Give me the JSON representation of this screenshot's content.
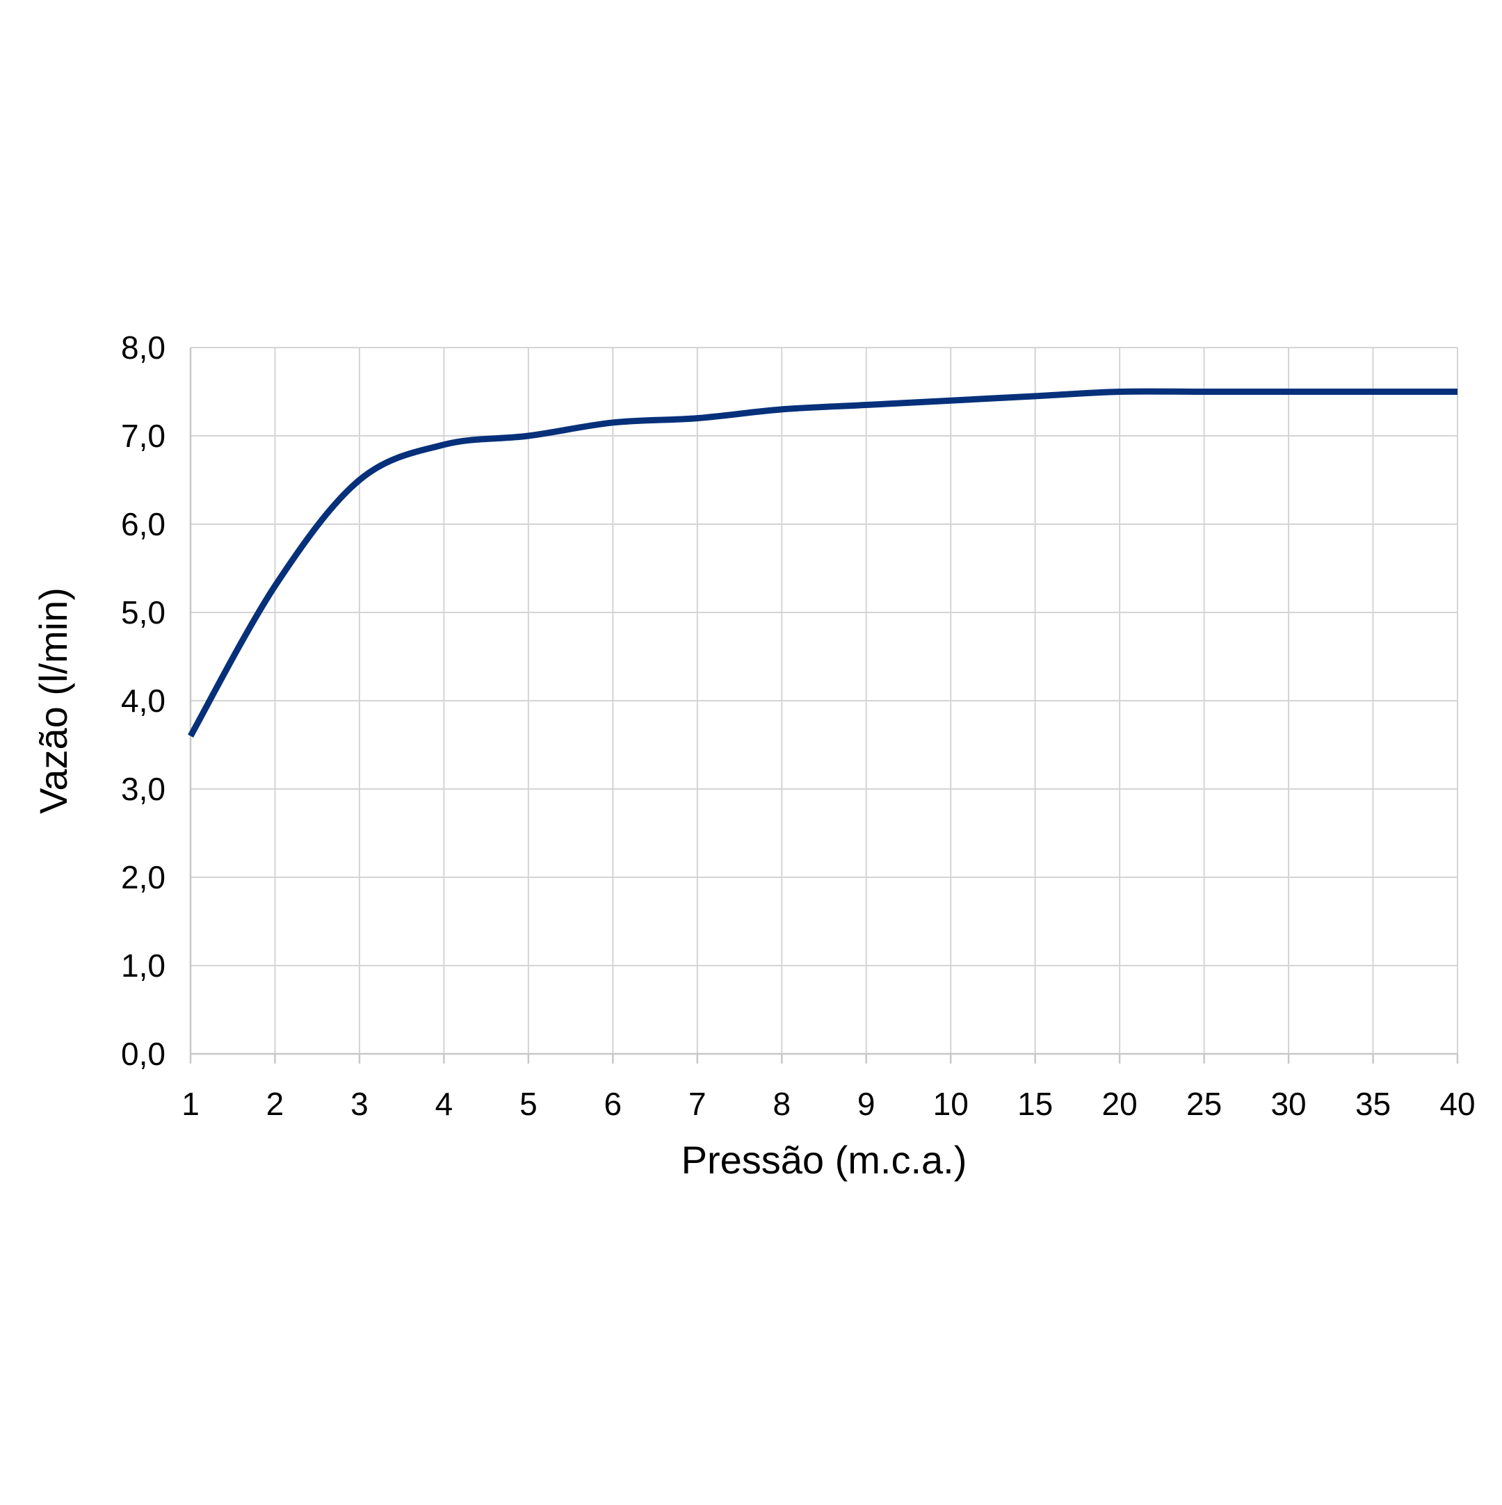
{
  "chart_data": {
    "type": "line",
    "title": "",
    "xlabel": "Pressão (m.c.a.)",
    "ylabel": "Vazão (l/min)",
    "x_axis_scale": "categorical",
    "categories": [
      "1",
      "2",
      "3",
      "4",
      "5",
      "6",
      "7",
      "8",
      "9",
      "10",
      "15",
      "20",
      "25",
      "30",
      "35",
      "40"
    ],
    "yticks": [
      "0,0",
      "1,0",
      "2,0",
      "3,0",
      "4,0",
      "5,0",
      "6,0",
      "7,0",
      "8,0"
    ],
    "ylim": [
      0,
      8
    ],
    "grid": true,
    "series": [
      {
        "values": [
          3.6,
          5.3,
          6.5,
          6.9,
          7.0,
          7.15,
          7.2,
          7.3,
          7.35,
          7.4,
          7.45,
          7.5,
          7.5,
          7.5,
          7.5,
          7.5
        ]
      }
    ],
    "colors": {
      "line": "#06307a",
      "grid": "#d4d4d4"
    }
  }
}
